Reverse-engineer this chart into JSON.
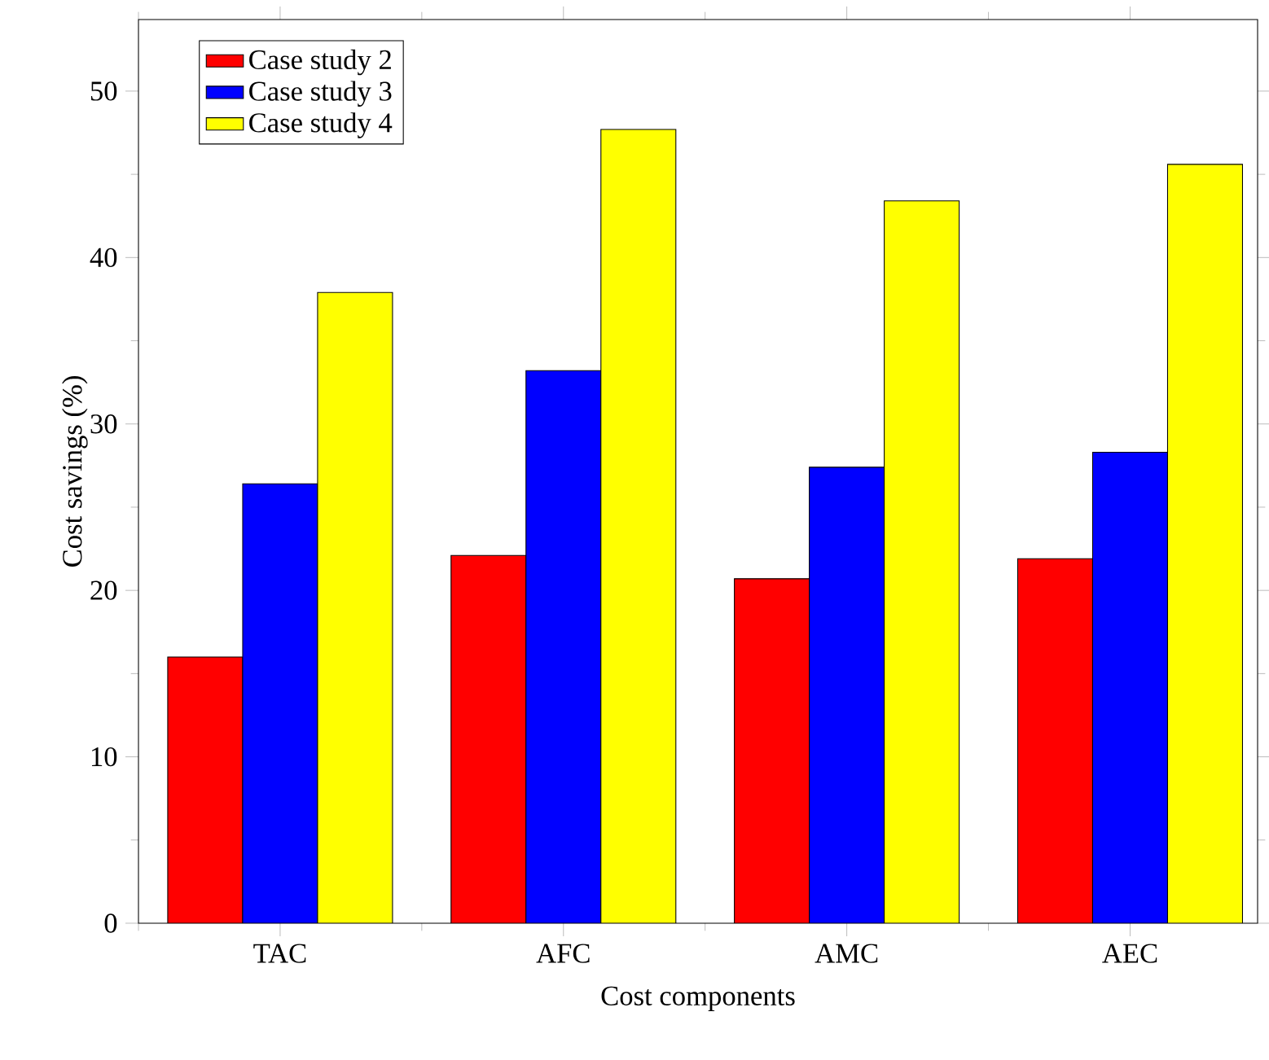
{
  "chart_data": {
    "type": "bar",
    "xlabel": "Cost components",
    "ylabel": "Cost savings (%)",
    "categories": [
      "TAC",
      "AFC",
      "AMC",
      "AEC"
    ],
    "series": [
      {
        "name": "Case study 2",
        "color": "#ff0000",
        "values": [
          16.0,
          22.1,
          20.7,
          21.9
        ]
      },
      {
        "name": "Case study 3",
        "color": "#0000ff",
        "values": [
          26.4,
          33.2,
          27.4,
          28.3
        ]
      },
      {
        "name": "Case study 4",
        "color": "#ffff00",
        "values": [
          37.9,
          47.7,
          43.4,
          45.6
        ]
      }
    ],
    "ylim": [
      0,
      54.3
    ],
    "yticks": [
      0,
      10,
      20,
      30,
      40,
      50
    ],
    "grid": false,
    "legend": "top left"
  }
}
